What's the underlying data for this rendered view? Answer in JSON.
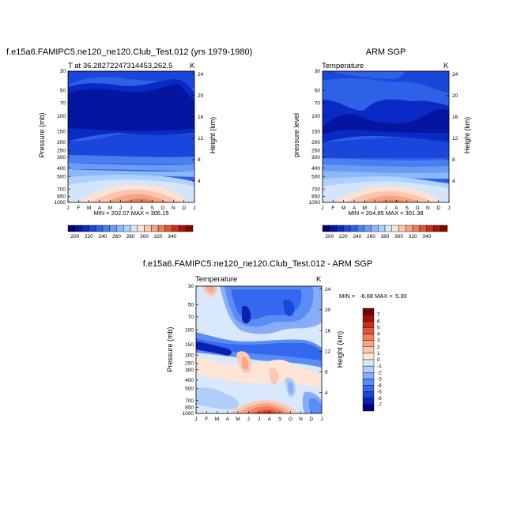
{
  "chart_data": [
    {
      "type": "contour",
      "id": "model",
      "title": "f.e15a6.FAMIPC5.ne120_ne120.Club_Test.012 (yrs 1979-1980)",
      "subtitle_left": "T at 36.28272247314453,262.5",
      "subtitle_right": "K",
      "ylabel_left": "Pressure (mb)",
      "ylabel_right": "Height (km)",
      "xticks": [
        "J",
        "F",
        "M",
        "A",
        "M",
        "J",
        "J",
        "A",
        "S",
        "O",
        "N",
        "D",
        "J"
      ],
      "yticks_left": [
        "30",
        "50",
        "70",
        "100",
        "150",
        "200",
        "250",
        "300",
        "400",
        "500",
        "700",
        "850",
        "1000"
      ],
      "yticks_right": [
        "24",
        "20",
        "16",
        "12",
        "8",
        "4"
      ],
      "min_max": "MIN = 202.07 MAX = 306.15",
      "min": 202.07,
      "max": 306.15,
      "colorbar_labels": [
        "200",
        "220",
        "240",
        "260",
        "280",
        "300",
        "320",
        "340"
      ]
    },
    {
      "type": "contour",
      "id": "obs",
      "title": "ARM SGP",
      "subtitle_left": "Temperature",
      "subtitle_right": "K",
      "ylabel_left": "pressure level",
      "ylabel_right": "Height (km)",
      "xticks": [
        "J",
        "F",
        "M",
        "A",
        "M",
        "J",
        "J",
        "A",
        "S",
        "O",
        "N",
        "D",
        "J"
      ],
      "yticks_left": [
        "30",
        "50",
        "70",
        "100",
        "150",
        "200",
        "250",
        "300",
        "400",
        "500",
        "700",
        "850",
        "1000"
      ],
      "yticks_right": [
        "24",
        "20",
        "16",
        "12",
        "8",
        "4"
      ],
      "min_max": "MIN = 204.85 MAX = 301.38",
      "min": 204.85,
      "max": 301.38,
      "colorbar_labels": [
        "200",
        "220",
        "240",
        "260",
        "280",
        "300",
        "320",
        "340"
      ]
    },
    {
      "type": "contour",
      "id": "diff",
      "title": "f.e15a6.FAMIPC5.ne120_ne120.Club_Test.012 - ARM SGP",
      "subtitle_left": "Temperature",
      "subtitle_right": "K",
      "ylabel_left": "Pressure (mb)",
      "ylabel_right": "Height (km)",
      "xticks": [
        "J",
        "F",
        "M",
        "A",
        "M",
        "J",
        "J",
        "A",
        "S",
        "O",
        "N",
        "D",
        "J"
      ],
      "yticks_left": [
        "30",
        "50",
        "70",
        "100",
        "150",
        "200",
        "250",
        "300",
        "400",
        "500",
        "700",
        "850",
        "1000"
      ],
      "yticks_right": [
        "24",
        "20",
        "16",
        "12",
        "8",
        "4"
      ],
      "min_label": "MIN =",
      "min_value": "-6.68",
      "max_label": "MAX =",
      "max_value": "5.30",
      "min": -6.68,
      "max": 5.3,
      "colorbar_labels": [
        "7",
        "6",
        "5",
        "4",
        "3",
        "2",
        "1",
        "0",
        "-1",
        "-2",
        "-3",
        "-4",
        "-5",
        "-6",
        "-7"
      ]
    }
  ],
  "palettes": {
    "temperature": [
      "#00006e",
      "#0515a0",
      "#0a2ac6",
      "#1a46dc",
      "#2e62e6",
      "#4a7ff0",
      "#6a9cf6",
      "#8cb8fa",
      "#b0d1fc",
      "#d4e5fb",
      "#fbe2d4",
      "#f9c5ad",
      "#f4a383",
      "#ec7e5a",
      "#de5636",
      "#c9301d",
      "#a8140f",
      "#7a0a05"
    ],
    "difference": [
      "#00007e",
      "#0a1fb4",
      "#1a45db",
      "#3468ee",
      "#5a8cf5",
      "#86aef8",
      "#b1cefb",
      "#d9e8fc",
      "#fde4d6",
      "#fbc8b1",
      "#f7a688",
      "#ef805e",
      "#e25738",
      "#cb2d1a",
      "#a2100c",
      "#700404"
    ]
  }
}
